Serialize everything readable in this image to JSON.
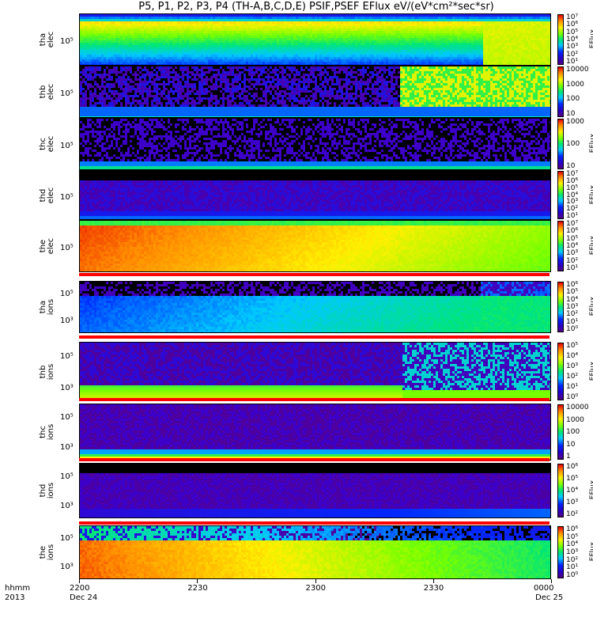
{
  "title": "P5, P1, P2, P3, P4  (TH-A,B,C,D,E) PSIF,PSEF EFlux eV/(eV*cm²*sec*sr)",
  "x_axis": {
    "row1_label": "hhmm",
    "row2_label": "2013",
    "ticks": [
      "2200",
      "2230",
      "2300",
      "2330",
      "0000"
    ],
    "date_labels": [
      "Dec 24",
      "Dec 25"
    ]
  },
  "colorbar_unit": "EFlux",
  "chart_data": [
    {
      "type": "heatmap",
      "panel": "tha elec",
      "ylabel": [
        "tha",
        "elec"
      ],
      "ytick": "10⁵",
      "colorbar_ticks": [
        "10⁷",
        "10⁶",
        "10⁵",
        "10⁴",
        "10³",
        "10²",
        "10¹"
      ],
      "colorbar_label": "EFlux"
    },
    {
      "type": "heatmap",
      "panel": "thb elec",
      "ylabel": [
        "thb",
        "elec"
      ],
      "ytick": "10⁵",
      "colorbar_ticks": [
        "10000",
        "1000",
        "100",
        "10"
      ],
      "colorbar_label": ""
    },
    {
      "type": "heatmap",
      "panel": "thc elec",
      "ylabel": [
        "thc",
        "elec"
      ],
      "ytick": "10⁵",
      "colorbar_ticks": [
        "1000",
        "100",
        "10"
      ],
      "colorbar_label": "EFlux"
    },
    {
      "type": "heatmap",
      "panel": "thd elec",
      "ylabel": [
        "thd",
        "elec"
      ],
      "ytick": "10⁵",
      "colorbar_ticks": [
        "10⁷",
        "10⁶",
        "10⁵",
        "10⁴",
        "10³",
        "10²",
        "10¹"
      ],
      "colorbar_label": "EFlux"
    },
    {
      "type": "heatmap",
      "panel": "the elec",
      "ylabel": [
        "the",
        "elec"
      ],
      "ytick": "10⁵",
      "colorbar_ticks": [
        "10⁷",
        "10⁶",
        "10⁵",
        "10⁴",
        "10³",
        "10²",
        "10¹"
      ],
      "colorbar_label": "EFlux"
    },
    {
      "type": "heatmap",
      "panel": "tha ions",
      "ylabel": [
        "tha",
        "ions"
      ],
      "yticks": [
        "10⁵",
        "10³"
      ],
      "colorbar_ticks": [
        "10⁶",
        "10⁵",
        "10⁴",
        "10³",
        "10²",
        "10¹",
        "10⁰"
      ],
      "colorbar_label": "EFlux"
    },
    {
      "type": "heatmap",
      "panel": "thb ions",
      "ylabel": [
        "thb",
        "ions"
      ],
      "yticks": [
        "10⁵",
        "10³"
      ],
      "colorbar_ticks": [
        "10⁵",
        "10⁴",
        "10³",
        "10²",
        "10¹",
        "10⁰"
      ],
      "colorbar_label": "EFlux"
    },
    {
      "type": "heatmap",
      "panel": "thc ions",
      "ylabel": [
        "thc",
        "ions"
      ],
      "yticks": [
        "10⁵",
        "10³"
      ],
      "colorbar_ticks": [
        "10000",
        "1000",
        "100",
        "10",
        "1"
      ],
      "colorbar_label": ""
    },
    {
      "type": "heatmap",
      "panel": "thd ions",
      "ylabel": [
        "thd",
        "ions"
      ],
      "yticks": [
        "10⁵",
        "10³"
      ],
      "colorbar_ticks": [
        "10⁶",
        "10⁵",
        "10⁴",
        "10³",
        "10²"
      ],
      "colorbar_label": "EFlux"
    },
    {
      "type": "heatmap",
      "panel": "the ions",
      "ylabel": [
        "the",
        "ions"
      ],
      "yticks": [
        "10⁵",
        "10³"
      ],
      "colorbar_ticks": [
        "10⁶",
        "10⁵",
        "10⁴",
        "10³",
        "10²",
        "10¹",
        "10⁰"
      ],
      "colorbar_label": "EFlux"
    }
  ]
}
